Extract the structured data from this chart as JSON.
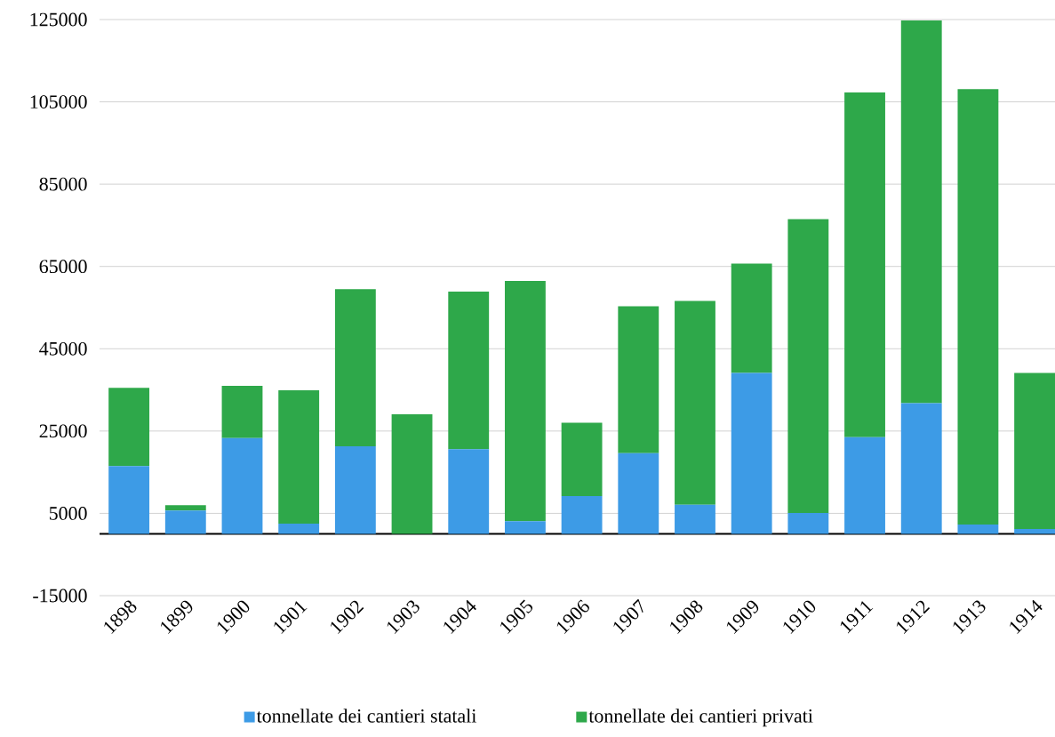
{
  "chart_data": {
    "type": "bar",
    "stacked": true,
    "categories": [
      "1898",
      "1899",
      "1900",
      "1901",
      "1902",
      "1903",
      "1904",
      "1905",
      "1906",
      "1907",
      "1908",
      "1909",
      "1910",
      "1911",
      "1912",
      "1913",
      "1914"
    ],
    "series": [
      {
        "name": "tonnellate dei cantieri statali",
        "color": "#3d9be6",
        "values": [
          16500,
          5700,
          23300,
          2500,
          21300,
          0,
          20600,
          3100,
          9200,
          19600,
          7100,
          39100,
          5100,
          23500,
          31800,
          2300,
          1200
        ]
      },
      {
        "name": "tonnellate dei cantieri privati",
        "color": "#2ea84a",
        "values": [
          19000,
          1300,
          12700,
          32400,
          38200,
          29100,
          38300,
          58400,
          17800,
          35700,
          49500,
          26600,
          71400,
          83800,
          93000,
          105800,
          37900
        ]
      }
    ],
    "ylim": [
      -15000,
      125000
    ],
    "yticks": [
      -15000,
      5000,
      25000,
      45000,
      65000,
      85000,
      105000,
      125000
    ],
    "grid": "y",
    "legend": "bottom"
  }
}
